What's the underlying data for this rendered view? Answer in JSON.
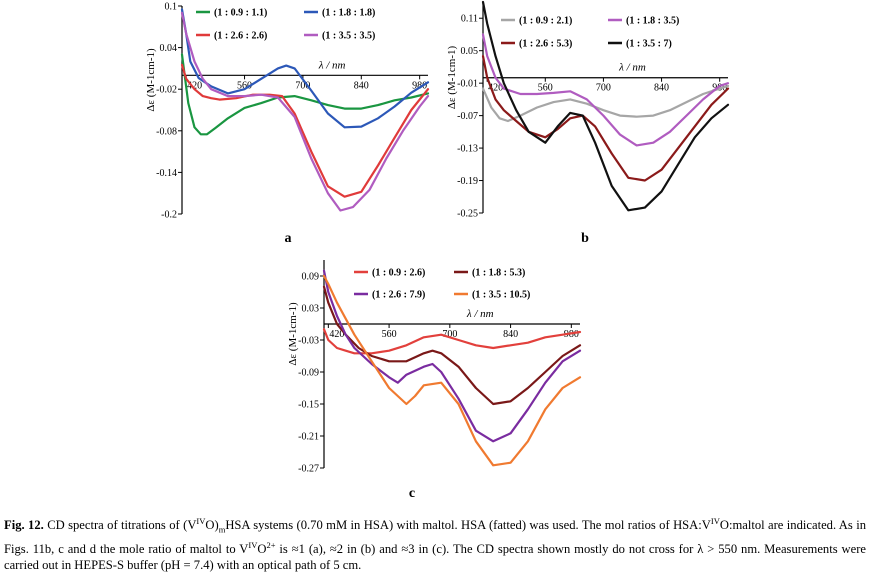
{
  "colors": {
    "green": "#1a9641",
    "blue": "#2c58b8",
    "red": "#e03a3a",
    "violet": "#b05cc0",
    "gray": "#a6a6a6",
    "maroon": "#8b1a1a",
    "black": "#111111",
    "red_c": "#e2403c",
    "maroon_c": "#7a1818",
    "purple_c": "#7a2ca0",
    "orange_c": "#f07a30"
  },
  "chart_data": [
    {
      "type": "line",
      "panel_label": "a",
      "ylabel": "Δε (M-1cm-1)",
      "xlabel": "λ / nm",
      "xlim": [
        410,
        1000
      ],
      "ylim": [
        -0.2,
        0.1
      ],
      "xticks": [
        {
          "v": 420,
          "label": "420"
        },
        {
          "v": 560,
          "label": "560"
        },
        {
          "v": 700,
          "label": "700"
        },
        {
          "v": 840,
          "label": "840"
        },
        {
          "v": 980,
          "label": "980"
        }
      ],
      "yticks": [
        {
          "v": 0.1,
          "label": "0.1"
        },
        {
          "v": 0.04,
          "label": "0.04"
        },
        {
          "v": -0.02,
          "label": "-0.02"
        },
        {
          "v": -0.08,
          "label": "-0.08"
        },
        {
          "v": -0.14,
          "label": "-0.14"
        },
        {
          "v": -0.2,
          "label": "-0.2"
        }
      ],
      "series": [
        {
          "name": "(1 : 0.9 : 1.1)",
          "color": "green",
          "x": [
            410,
            425,
            440,
            455,
            470,
            490,
            520,
            560,
            600,
            640,
            680,
            720,
            760,
            800,
            840,
            880,
            920,
            960,
            1000
          ],
          "y": [
            0.03,
            -0.04,
            -0.075,
            -0.085,
            -0.085,
            -0.076,
            -0.062,
            -0.047,
            -0.04,
            -0.032,
            -0.03,
            -0.036,
            -0.043,
            -0.048,
            -0.048,
            -0.043,
            -0.036,
            -0.032,
            -0.026
          ]
        },
        {
          "name": "(1 : 1.8 : 1.8)",
          "color": "blue",
          "x": [
            410,
            420,
            430,
            450,
            480,
            520,
            560,
            600,
            640,
            660,
            680,
            720,
            760,
            800,
            840,
            880,
            920,
            960,
            1000
          ],
          "y": [
            0.095,
            0.06,
            0.02,
            -0.004,
            -0.016,
            -0.026,
            -0.02,
            -0.005,
            0.01,
            0.014,
            0.01,
            -0.022,
            -0.055,
            -0.075,
            -0.074,
            -0.062,
            -0.045,
            -0.025,
            -0.01
          ]
        },
        {
          "name": "(1 : 2.6 : 2.6)",
          "color": "red",
          "x": [
            410,
            420,
            440,
            460,
            480,
            500,
            540,
            580,
            620,
            650,
            680,
            720,
            760,
            800,
            840,
            880,
            920,
            960,
            1000
          ],
          "y": [
            0.015,
            -0.005,
            -0.02,
            -0.03,
            -0.033,
            -0.035,
            -0.033,
            -0.028,
            -0.028,
            -0.03,
            -0.055,
            -0.11,
            -0.16,
            -0.175,
            -0.168,
            -0.13,
            -0.09,
            -0.05,
            -0.02
          ]
        },
        {
          "name": "(1 : 3.5 : 3.5)",
          "color": "violet",
          "x": [
            410,
            420,
            440,
            460,
            480,
            520,
            560,
            600,
            640,
            680,
            720,
            760,
            790,
            820,
            860,
            900,
            940,
            980,
            1000
          ],
          "y": [
            0.09,
            0.06,
            0.02,
            -0.005,
            -0.02,
            -0.03,
            -0.03,
            -0.028,
            -0.032,
            -0.06,
            -0.12,
            -0.17,
            -0.195,
            -0.19,
            -0.165,
            -0.12,
            -0.08,
            -0.045,
            -0.03
          ]
        }
      ]
    },
    {
      "type": "line",
      "panel_label": "b",
      "ylabel": "Δε (M-1cm-1)",
      "xlabel": "λ / nm",
      "xlim": [
        410,
        1000
      ],
      "ylim": [
        -0.25,
        0.14
      ],
      "xticks": [
        {
          "v": 420,
          "label": "420"
        },
        {
          "v": 560,
          "label": "560"
        },
        {
          "v": 700,
          "label": "700"
        },
        {
          "v": 840,
          "label": "840"
        },
        {
          "v": 980,
          "label": "980"
        }
      ],
      "yticks": [
        {
          "v": 0.11,
          "label": "0.11"
        },
        {
          "v": 0.05,
          "label": "0.05"
        },
        {
          "v": -0.01,
          "label": "-0.01"
        },
        {
          "v": -0.07,
          "label": "-0.07"
        },
        {
          "v": -0.13,
          "label": "-0.13"
        },
        {
          "v": -0.19,
          "label": "-0.19"
        },
        {
          "v": -0.25,
          "label": "-0.25"
        }
      ],
      "series": [
        {
          "name": "(1 : 0.9 : 2.1)",
          "color": "gray",
          "x": [
            410,
            430,
            450,
            470,
            500,
            540,
            580,
            620,
            660,
            700,
            740,
            780,
            820,
            860,
            900,
            940,
            980,
            1000
          ],
          "y": [
            -0.02,
            -0.055,
            -0.075,
            -0.08,
            -0.07,
            -0.055,
            -0.045,
            -0.04,
            -0.048,
            -0.06,
            -0.07,
            -0.072,
            -0.07,
            -0.06,
            -0.045,
            -0.03,
            -0.02,
            -0.015
          ]
        },
        {
          "name": "(1 : 1.8 : 3.5)",
          "color": "violet",
          "x": [
            410,
            420,
            440,
            460,
            500,
            540,
            580,
            620,
            660,
            700,
            740,
            780,
            820,
            860,
            900,
            940,
            980,
            1000
          ],
          "y": [
            0.08,
            0.04,
            0.0,
            -0.02,
            -0.03,
            -0.03,
            -0.028,
            -0.025,
            -0.04,
            -0.07,
            -0.105,
            -0.125,
            -0.12,
            -0.1,
            -0.07,
            -0.04,
            -0.015,
            -0.01
          ]
        },
        {
          "name": "(1 : 2.6 : 5.3)",
          "color": "maroon",
          "x": [
            410,
            420,
            440,
            460,
            490,
            520,
            560,
            590,
            620,
            650,
            680,
            720,
            760,
            800,
            840,
            880,
            920,
            960,
            1000
          ],
          "y": [
            0.04,
            0.0,
            -0.04,
            -0.06,
            -0.08,
            -0.1,
            -0.11,
            -0.095,
            -0.075,
            -0.07,
            -0.09,
            -0.14,
            -0.185,
            -0.19,
            -0.17,
            -0.13,
            -0.09,
            -0.05,
            -0.02
          ]
        },
        {
          "name": "(1 : 3.5 : 7)",
          "color": "black",
          "x": [
            410,
            420,
            440,
            460,
            490,
            520,
            560,
            590,
            620,
            650,
            680,
            720,
            760,
            800,
            840,
            880,
            920,
            960,
            1000
          ],
          "y": [
            0.14,
            0.1,
            0.04,
            -0.01,
            -0.06,
            -0.1,
            -0.12,
            -0.09,
            -0.065,
            -0.07,
            -0.12,
            -0.2,
            -0.245,
            -0.24,
            -0.21,
            -0.16,
            -0.11,
            -0.075,
            -0.05
          ]
        }
      ]
    },
    {
      "type": "line",
      "panel_label": "c",
      "ylabel": "Δε (M-1cm-1)",
      "xlabel": "λ / nm",
      "xlim": [
        410,
        1000
      ],
      "ylim": [
        -0.27,
        0.12
      ],
      "xticks": [
        {
          "v": 420,
          "label": "420"
        },
        {
          "v": 560,
          "label": "560"
        },
        {
          "v": 700,
          "label": "700"
        },
        {
          "v": 840,
          "label": "840"
        },
        {
          "v": 980,
          "label": "980"
        }
      ],
      "yticks": [
        {
          "v": 0.09,
          "label": "0.09"
        },
        {
          "v": 0.03,
          "label": "0.03"
        },
        {
          "v": -0.03,
          "label": "-0.03"
        },
        {
          "v": -0.09,
          "label": "-0.09"
        },
        {
          "v": -0.15,
          "label": "-0.15"
        },
        {
          "v": -0.21,
          "label": "-0.21"
        },
        {
          "v": -0.27,
          "label": "-0.27"
        }
      ],
      "series": [
        {
          "name": "(1 : 0.9 : 2.6)",
          "color": "red_c",
          "x": [
            410,
            420,
            440,
            460,
            480,
            520,
            560,
            600,
            640,
            680,
            720,
            760,
            800,
            840,
            880,
            920,
            960,
            1000
          ],
          "y": [
            -0.01,
            -0.03,
            -0.045,
            -0.05,
            -0.055,
            -0.055,
            -0.05,
            -0.04,
            -0.025,
            -0.02,
            -0.03,
            -0.04,
            -0.045,
            -0.04,
            -0.035,
            -0.025,
            -0.02,
            -0.015
          ]
        },
        {
          "name": "(1 : 1.8 : 5.3)",
          "color": "maroon_c",
          "x": [
            410,
            420,
            440,
            460,
            490,
            520,
            560,
            600,
            640,
            660,
            680,
            720,
            760,
            800,
            840,
            880,
            920,
            960,
            1000
          ],
          "y": [
            0.07,
            0.04,
            0.0,
            -0.02,
            -0.045,
            -0.06,
            -0.07,
            -0.07,
            -0.055,
            -0.05,
            -0.055,
            -0.08,
            -0.12,
            -0.15,
            -0.145,
            -0.12,
            -0.09,
            -0.06,
            -0.04
          ]
        },
        {
          "name": "(1 : 2.6 : 7.9)",
          "color": "purple_c",
          "x": [
            410,
            420,
            440,
            460,
            480,
            520,
            560,
            580,
            600,
            640,
            660,
            680,
            720,
            760,
            800,
            840,
            880,
            920,
            960,
            1000
          ],
          "y": [
            0.1,
            0.06,
            0.015,
            -0.02,
            -0.045,
            -0.075,
            -0.1,
            -0.11,
            -0.095,
            -0.08,
            -0.075,
            -0.09,
            -0.14,
            -0.2,
            -0.22,
            -0.205,
            -0.16,
            -0.11,
            -0.07,
            -0.05
          ]
        },
        {
          "name": "(1 : 3.5 : 10.5)",
          "color": "orange_c",
          "x": [
            410,
            420,
            440,
            460,
            480,
            520,
            560,
            600,
            620,
            640,
            680,
            720,
            760,
            800,
            840,
            880,
            920,
            960,
            1000
          ],
          "y": [
            0.09,
            0.075,
            0.04,
            0.01,
            -0.02,
            -0.07,
            -0.12,
            -0.15,
            -0.135,
            -0.115,
            -0.11,
            -0.15,
            -0.22,
            -0.265,
            -0.26,
            -0.22,
            -0.16,
            -0.12,
            -0.1
          ]
        }
      ]
    }
  ],
  "caption": {
    "fig": "Fig. 12.",
    "t1": " CD spectra of titrations of (V",
    "s1": "IV",
    "t2": "O)",
    "s2": "m",
    "t3": "HSA systems (0.70 mM in HSA) with maltol. HSA (fatted) was used. The mol ratios of HSA:V",
    "s3": "IV",
    "t4": "O:maltol are indicated. As in Figs. 11b, c and d the mole ratio of maltol to V",
    "s4": "IV",
    "t5": "O",
    "s5": "2+",
    "t6": " is ≈1 (a), ≈2 in (b) and ≈3 in (c). The CD spectra shown mostly do not cross for λ > 550 nm. Measurements were carried out in HEPES-S buffer (pH = 7.4) with an optical path of 5 cm."
  }
}
